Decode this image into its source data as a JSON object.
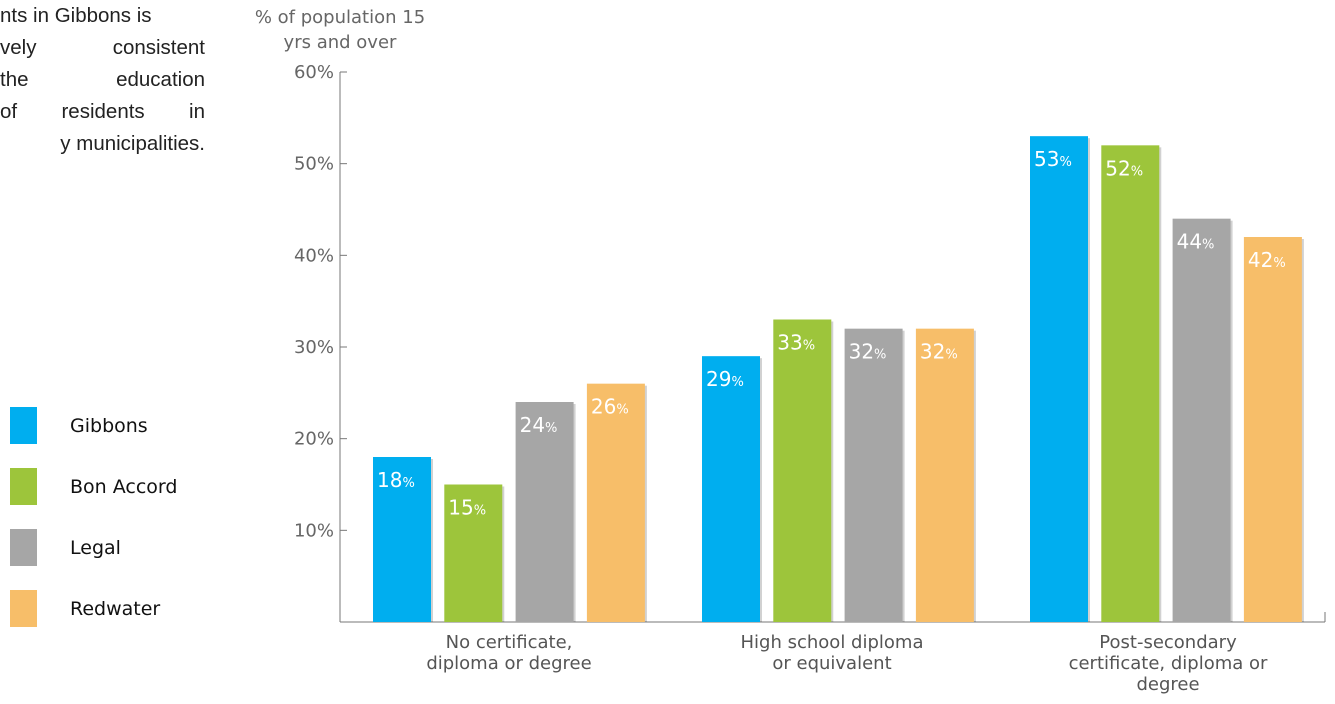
{
  "intro": {
    "lines": [
      "nts in Gibbons is",
      "vely consistent",
      "the education",
      "of residents in",
      "y municipalities."
    ]
  },
  "legend": [
    {
      "name": "Gibbons",
      "color": "#00AEEF"
    },
    {
      "name": "Bon Accord",
      "color": "#9DC53B"
    },
    {
      "name": "Legal",
      "color": "#A6A6A6"
    },
    {
      "name": "Redwater",
      "color": "#F7BE69"
    }
  ],
  "chart_data": {
    "type": "bar",
    "ylabel": "% of population 15 yrs and over",
    "ylabel_lines": [
      "% of population 15",
      "yrs and over"
    ],
    "ylim": [
      0,
      60
    ],
    "yticks": [
      10,
      20,
      30,
      40,
      50,
      60
    ],
    "ytick_labels": [
      "10%",
      "20%",
      "30%",
      "40%",
      "50%",
      "60%"
    ],
    "categories": [
      "No certificate, diploma or degree",
      "High school diploma or equivalent",
      "Post-secondary certificate, diploma or degree"
    ],
    "category_label_lines": [
      [
        "No certificate,",
        "diploma or degree"
      ],
      [
        "High school diploma",
        "or equivalent"
      ],
      [
        "Post-secondary",
        "certificate, diploma or",
        "degree"
      ]
    ],
    "series": [
      {
        "name": "Gibbons",
        "color": "#00AEEF",
        "values": [
          18,
          29,
          53
        ]
      },
      {
        "name": "Bon Accord",
        "color": "#9DC53B",
        "values": [
          15,
          33,
          52
        ]
      },
      {
        "name": "Legal",
        "color": "#A6A6A6",
        "values": [
          24,
          32,
          44
        ]
      },
      {
        "name": "Redwater",
        "color": "#F7BE69",
        "values": [
          26,
          32,
          42
        ]
      }
    ],
    "value_suffix": "%",
    "grid": false,
    "legend_position": "left"
  }
}
